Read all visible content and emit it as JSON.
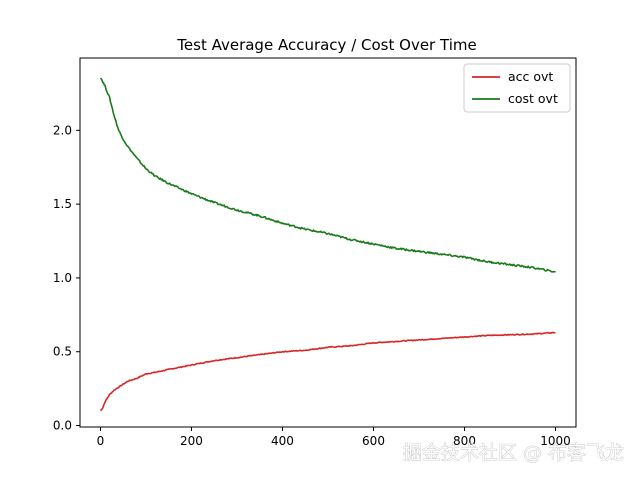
{
  "chart_data": {
    "type": "line",
    "title": "Test Average Accuracy / Cost Over Time",
    "xlabel": "",
    "ylabel": "",
    "xlim": [
      -45,
      1045
    ],
    "ylim": [
      -0.01,
      2.49
    ],
    "xticks": [
      0,
      200,
      400,
      600,
      800,
      1000
    ],
    "yticks": [
      0.0,
      0.5,
      1.0,
      1.5,
      2.0
    ],
    "ytick_labels": [
      "0.0",
      "0.5",
      "1.0",
      "1.5",
      "2.0"
    ],
    "grid": false,
    "legend_position": "top-right",
    "series": [
      {
        "name": "acc ovt",
        "color": "#d62728",
        "x": [
          0,
          5,
          10,
          20,
          30,
          40,
          50,
          60,
          80,
          100,
          120,
          150,
          200,
          250,
          300,
          350,
          400,
          450,
          500,
          550,
          600,
          650,
          700,
          750,
          800,
          850,
          900,
          950,
          1000
        ],
        "y": [
          0.1,
          0.12,
          0.16,
          0.21,
          0.24,
          0.26,
          0.28,
          0.3,
          0.32,
          0.35,
          0.36,
          0.38,
          0.41,
          0.44,
          0.46,
          0.48,
          0.5,
          0.51,
          0.53,
          0.54,
          0.56,
          0.57,
          0.58,
          0.59,
          0.6,
          0.61,
          0.615,
          0.62,
          0.63
        ]
      },
      {
        "name": "cost ovt",
        "color": "#1a7a1a",
        "x": [
          0,
          5,
          10,
          20,
          30,
          40,
          50,
          60,
          80,
          100,
          120,
          150,
          200,
          250,
          300,
          350,
          400,
          450,
          500,
          550,
          600,
          650,
          700,
          750,
          800,
          850,
          900,
          950,
          1000
        ],
        "y": [
          2.36,
          2.33,
          2.3,
          2.22,
          2.1,
          2.0,
          1.94,
          1.89,
          1.81,
          1.74,
          1.69,
          1.64,
          1.57,
          1.51,
          1.46,
          1.42,
          1.37,
          1.33,
          1.3,
          1.26,
          1.23,
          1.2,
          1.18,
          1.16,
          1.14,
          1.11,
          1.09,
          1.07,
          1.04
        ]
      }
    ]
  },
  "watermark": "掘金技术社区 @ 布客飞龙"
}
